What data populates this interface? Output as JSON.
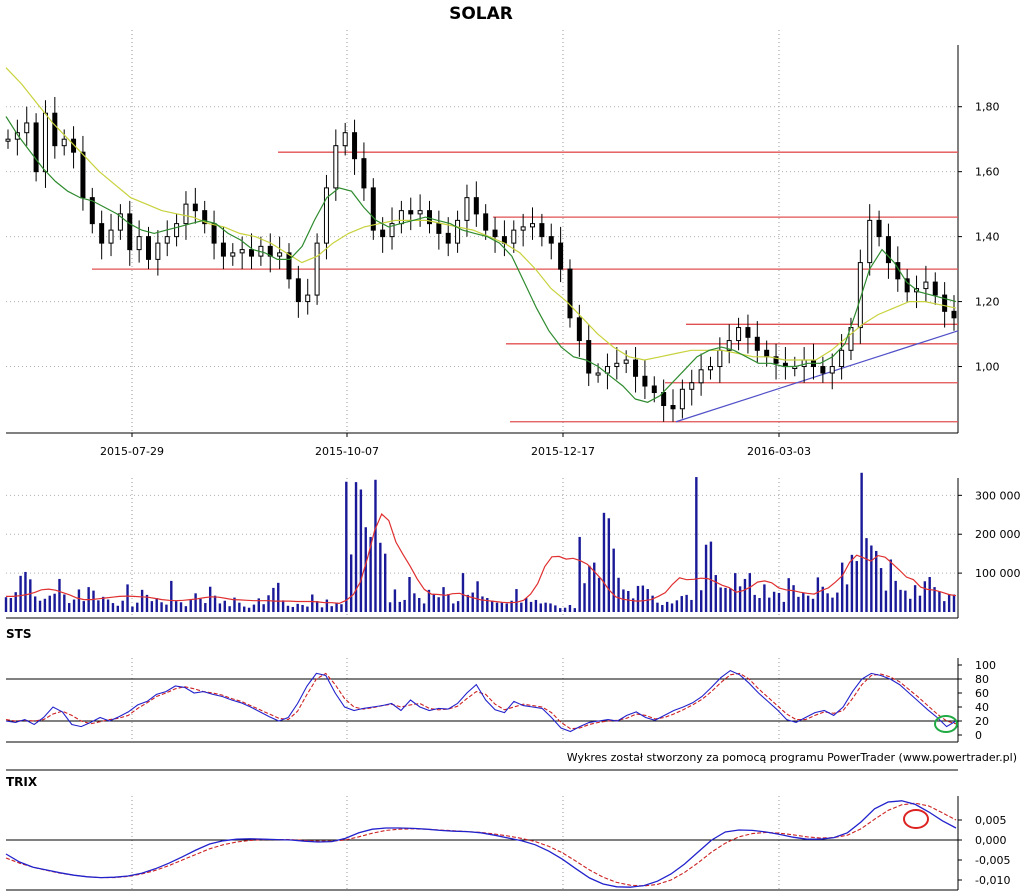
{
  "chart_data": [
    {
      "panel": "price",
      "type": "candlestick",
      "title": "SOLAR",
      "x_tick_labels": [
        "2015-07-29",
        "2015-10-07",
        "2015-12-17",
        "2016-03-03"
      ],
      "y_tick_labels": [
        "1,80",
        "1,60",
        "1,40",
        "1,20",
        "1,00"
      ],
      "ylim": [
        0.82,
        1.99
      ],
      "grid": "dotted",
      "series": [
        {
          "name": "close",
          "color": "#000000",
          "values": [
            1.7,
            1.72,
            1.75,
            1.6,
            1.78,
            1.68,
            1.7,
            1.66,
            1.52,
            1.44,
            1.38,
            1.42,
            1.47,
            1.36,
            1.4,
            1.33,
            1.38,
            1.4,
            1.44,
            1.5,
            1.48,
            1.44,
            1.38,
            1.34,
            1.35,
            1.36,
            1.34,
            1.37,
            1.34,
            1.35,
            1.27,
            1.2,
            1.22,
            1.38,
            1.55,
            1.68,
            1.72,
            1.64,
            1.55,
            1.42,
            1.4,
            1.44,
            1.48,
            1.47,
            1.48,
            1.44,
            1.41,
            1.38,
            1.45,
            1.52,
            1.47,
            1.42,
            1.4,
            1.38,
            1.42,
            1.43,
            1.44,
            1.4,
            1.38,
            1.3,
            1.15,
            1.08,
            0.98,
            0.98,
            1.0,
            1.01,
            1.02,
            0.97,
            0.94,
            0.92,
            0.88,
            0.87,
            0.93,
            0.95,
            0.99,
            1.0,
            1.05,
            1.08,
            1.12,
            1.09,
            1.05,
            1.03,
            1.01,
            1.0,
            1.0,
            1.02,
            1.0,
            0.98,
            1.0,
            1.05,
            1.12,
            1.32,
            1.45,
            1.4,
            1.32,
            1.27,
            1.23,
            1.24,
            1.26,
            1.22,
            1.17,
            1.15
          ]
        },
        {
          "name": "short moving average",
          "color": "#2e8b2e",
          "values": [
            1.77,
            1.71,
            1.66,
            1.61,
            1.57,
            1.54,
            1.52,
            1.51,
            1.49,
            1.47,
            1.44,
            1.42,
            1.41,
            1.42,
            1.43,
            1.44,
            1.45,
            1.44,
            1.41,
            1.39,
            1.36,
            1.35,
            1.33,
            1.33,
            1.37,
            1.45,
            1.52,
            1.55,
            1.54,
            1.49,
            1.45,
            1.43,
            1.44,
            1.45,
            1.46,
            1.45,
            1.44,
            1.42,
            1.41,
            1.4,
            1.38,
            1.34,
            1.26,
            1.18,
            1.11,
            1.06,
            1.03,
            1.02,
            1.0,
            0.97,
            0.94,
            0.9,
            0.89,
            0.91,
            0.95,
            0.99,
            1.03,
            1.05,
            1.06,
            1.05,
            1.03,
            1.01,
            1.01,
            1.0,
            1.0,
            1.01,
            1.01,
            1.03,
            1.07,
            1.18,
            1.3,
            1.36,
            1.32,
            1.26,
            1.23,
            1.22,
            1.21,
            1.2
          ]
        },
        {
          "name": "long moving average",
          "color": "#c8d23c",
          "values": [
            1.92,
            1.87,
            1.81,
            1.75,
            1.7,
            1.65,
            1.6,
            1.56,
            1.52,
            1.5,
            1.48,
            1.47,
            1.46,
            1.44,
            1.43,
            1.41,
            1.4,
            1.38,
            1.35,
            1.32,
            1.34,
            1.38,
            1.41,
            1.43,
            1.44,
            1.45,
            1.45,
            1.45,
            1.44,
            1.43,
            1.42,
            1.4,
            1.38,
            1.35,
            1.3,
            1.24,
            1.2,
            1.15,
            1.1,
            1.06,
            1.03,
            1.02,
            1.03,
            1.04,
            1.05,
            1.05,
            1.05,
            1.04,
            1.03,
            1.03,
            1.02,
            1.02,
            1.02,
            1.05,
            1.09,
            1.13,
            1.16,
            1.18,
            1.2,
            1.2,
            1.19,
            1.18
          ]
        }
      ],
      "horizontal_levels": [
        1.66,
        1.46,
        1.3,
        1.13,
        1.07,
        0.95,
        0.83
      ],
      "trendline": {
        "from": [
          0.83
        ],
        "to": [
          1.11
        ],
        "color": "#5050c8"
      },
      "colors": {
        "candle": "#000000",
        "level": "#e05050",
        "grid": "#888888"
      }
    },
    {
      "panel": "volume",
      "type": "bar",
      "y_tick_labels": [
        "300 000",
        "200 000",
        "100 000"
      ],
      "ylim": [
        0,
        360000
      ],
      "series": [
        {
          "name": "volume",
          "color": "#1a1a99",
          "values": [
            38000,
            36000,
            51000,
            93000,
            103000,
            84000,
            40000,
            29000,
            34000,
            42000,
            47000,
            85000,
            45000,
            23000,
            32000,
            58000,
            28000,
            64000,
            55000,
            30000,
            39000,
            32000,
            23000,
            16000,
            29000,
            71000,
            14000,
            24000,
            57000,
            44000,
            28000,
            36000,
            25000,
            19000,
            80000,
            28000,
            25000,
            15000,
            33000,
            48000,
            34000,
            23000,
            65000,
            42000,
            22000,
            29000,
            15000,
            37000,
            24000,
            14000,
            11000,
            19000,
            35000,
            20000,
            43000,
            62000,
            75000,
            30000,
            16000,
            13000,
            21000,
            18000,
            14000,
            45000,
            28000,
            12000,
            32000,
            15000,
            24000,
            20000,
            335000,
            148000,
            334000,
            315000,
            218000,
            193000,
            340000,
            178000,
            150000,
            25000,
            58000,
            26000,
            31000,
            90000,
            48000,
            36000,
            22000,
            57000,
            46000,
            38000,
            64000,
            46000,
            22000,
            28000,
            100000,
            44000,
            50000,
            79000,
            40000,
            36000,
            29000,
            24000,
            24000,
            22000,
            29000,
            59000,
            24000,
            36000,
            26000,
            31000,
            22000,
            24000,
            22000,
            17000,
            10000,
            11000,
            18000,
            10000,
            193000,
            74000,
            119000,
            127000,
            88000,
            255000,
            241000,
            163000,
            88000,
            58000,
            54000,
            35000,
            67000,
            68000,
            59000,
            42000,
            24000,
            18000,
            26000,
            22000,
            30000,
            41000,
            44000,
            31000,
            347000,
            56000,
            173000,
            181000,
            95000,
            63000,
            62000,
            61000,
            100000,
            66000,
            85000,
            100000,
            44000,
            36000,
            71000,
            37000,
            52000,
            49000,
            26000,
            87000,
            69000,
            39000,
            49000,
            42000,
            34000,
            89000,
            65000,
            48000,
            37000,
            50000,
            127000,
            71000,
            147000,
            131000,
            358000,
            190000,
            171000,
            157000,
            113000,
            55000,
            135000,
            80000,
            57000,
            55000,
            34000,
            69000,
            42000,
            79000,
            90000,
            64000,
            53000,
            28000,
            44000,
            45000
          ]
        },
        {
          "name": "volume average",
          "color": "#e03030",
          "values": [
            40000,
            40000,
            42000,
            45000,
            50000,
            57000,
            59000,
            56000,
            50000,
            44000,
            36000,
            32000,
            32000,
            34000,
            36000,
            38000,
            40000,
            41000,
            40000,
            39000,
            38000,
            35000,
            32000,
            30000,
            29000,
            30000,
            32000,
            34000,
            37000,
            39000,
            38000,
            35000,
            32000,
            31000,
            30000,
            29000,
            29000,
            29000,
            28000,
            28000,
            28000,
            27000,
            27000,
            27000,
            26000,
            24000,
            24000,
            22000,
            30000,
            45000,
            78000,
            140000,
            210000,
            252000,
            235000,
            180000,
            148000,
            118000,
            85000,
            58000,
            46000,
            45000,
            43000,
            47000,
            48000,
            41000,
            36000,
            31000,
            29000,
            27000,
            25000,
            24000,
            25000,
            30000,
            46000,
            73000,
            117000,
            142000,
            143000,
            136000,
            138000,
            132000,
            123000,
            104000,
            84000,
            58000,
            39000,
            33000,
            30000,
            28000,
            29000,
            32000,
            40000,
            50000,
            71000,
            88000,
            83000,
            84000,
            87000,
            86000,
            78000,
            69000,
            63000,
            51000,
            55000,
            64000,
            77000,
            80000,
            75000,
            62000,
            57000,
            55000,
            51000,
            48000,
            46000,
            55000,
            62000,
            77000,
            94000,
            128000,
            146000,
            139000,
            131000,
            145000,
            141000,
            125000,
            108000,
            90000,
            83000,
            64000,
            58000,
            56000,
            51000,
            45000,
            42000
          ]
        }
      ]
    },
    {
      "panel": "STS",
      "type": "line",
      "label": "STS",
      "y_tick_labels": [
        "100",
        "80",
        "60",
        "40",
        "20",
        "0"
      ],
      "ylim": [
        0,
        100
      ],
      "reference_lines": [
        80,
        20
      ],
      "series": [
        {
          "name": "%K",
          "color": "#2222cc",
          "values": [
            20,
            18,
            22,
            15,
            25,
            40,
            33,
            15,
            12,
            18,
            25,
            20,
            26,
            33,
            43,
            48,
            58,
            62,
            70,
            68,
            60,
            62,
            58,
            55,
            50,
            46,
            40,
            33,
            26,
            20,
            25,
            45,
            70,
            88,
            85,
            60,
            40,
            35,
            38,
            40,
            42,
            45,
            35,
            50,
            40,
            35,
            38,
            37,
            45,
            60,
            72,
            50,
            36,
            32,
            48,
            42,
            40,
            38,
            25,
            10,
            5,
            12,
            18,
            20,
            22,
            20,
            28,
            33,
            25,
            21,
            28,
            35,
            40,
            46,
            55,
            68,
            82,
            92,
            86,
            74,
            60,
            48,
            36,
            22,
            18,
            25,
            32,
            35,
            28,
            40,
            62,
            80,
            88,
            85,
            80,
            72,
            60,
            48,
            36,
            25,
            12,
            20
          ]
        },
        {
          "name": "%D",
          "color": "#cc2222",
          "values": [
            22,
            20,
            21,
            20,
            22,
            30,
            34,
            28,
            20,
            16,
            19,
            22,
            24,
            28,
            38,
            46,
            55,
            60,
            66,
            69,
            66,
            62,
            60,
            57,
            52,
            48,
            42,
            36,
            30,
            24,
            22,
            34,
            58,
            80,
            88,
            72,
            52,
            40,
            37,
            39,
            42,
            44,
            40,
            43,
            45,
            38,
            36,
            37,
            41,
            52,
            62,
            58,
            44,
            36,
            40,
            44,
            42,
            40,
            32,
            18,
            9,
            10,
            15,
            18,
            20,
            21,
            24,
            30,
            28,
            23,
            25,
            30,
            36,
            43,
            51,
            62,
            75,
            86,
            88,
            80,
            66,
            54,
            42,
            30,
            22,
            22,
            28,
            33,
            31,
            35,
            52,
            72,
            85,
            87,
            83,
            76,
            65,
            54,
            42,
            30,
            20,
            16
          ]
        }
      ],
      "marker": {
        "shape": "ellipse",
        "color": "#22aa44"
      }
    },
    {
      "panel": "TRIX",
      "type": "line",
      "label": "TRIX",
      "y_tick_labels": [
        "0,005",
        "0,000",
        "-0,005",
        "-0,010"
      ],
      "ylim": [
        -0.0125,
        0.011
      ],
      "reference_lines": [
        0.0
      ],
      "series": [
        {
          "name": "TRIX",
          "color": "#2222cc",
          "values": [
            -0.0035,
            -0.0055,
            -0.0068,
            -0.0075,
            -0.0082,
            -0.0088,
            -0.0092,
            -0.0094,
            -0.0093,
            -0.009,
            -0.0083,
            -0.0072,
            -0.0058,
            -0.0042,
            -0.0025,
            -0.001,
            -0.0002,
            0.0002,
            0.0003,
            0.0002,
            0.0001,
            0.0,
            -0.0003,
            -0.0005,
            -0.0004,
            0.0004,
            0.0018,
            0.0027,
            0.003,
            0.003,
            0.0029,
            0.0027,
            0.0024,
            0.0022,
            0.0021,
            0.0018,
            0.0012,
            0.0005,
            -0.0002,
            -0.0012,
            -0.0028,
            -0.0048,
            -0.0072,
            -0.0095,
            -0.011,
            -0.0117,
            -0.0118,
            -0.0114,
            -0.0103,
            -0.0085,
            -0.006,
            -0.003,
            0.0,
            0.002,
            0.0025,
            0.0024,
            0.002,
            0.0014,
            0.0007,
            0.0002,
            0.0002,
            0.0006,
            0.0018,
            0.0045,
            0.0078,
            0.0095,
            0.0098,
            0.0089,
            0.007,
            0.0048,
            0.003
          ]
        },
        {
          "name": "signal",
          "color": "#cc2222",
          "values": [
            -0.0045,
            -0.0058,
            -0.0068,
            -0.0076,
            -0.0083,
            -0.0088,
            -0.0092,
            -0.0094,
            -0.0094,
            -0.0091,
            -0.0085,
            -0.0076,
            -0.0064,
            -0.005,
            -0.0036,
            -0.0022,
            -0.0012,
            -0.0005,
            -0.0001,
            0.0001,
            0.0001,
            0.0001,
            -0.0001,
            -0.0003,
            -0.0003,
            0.0,
            0.0008,
            0.0017,
            0.0024,
            0.0027,
            0.0028,
            0.0027,
            0.0025,
            0.0023,
            0.0021,
            0.0019,
            0.0015,
            0.001,
            0.0004,
            -0.0004,
            -0.0016,
            -0.0032,
            -0.0053,
            -0.0075,
            -0.0093,
            -0.0106,
            -0.0113,
            -0.0115,
            -0.0111,
            -0.01,
            -0.0081,
            -0.0057,
            -0.003,
            -0.0008,
            0.0008,
            0.0016,
            0.0019,
            0.0017,
            0.0013,
            0.0008,
            0.0005,
            0.0006,
            0.0012,
            0.0028,
            0.0052,
            0.0074,
            0.0088,
            0.0092,
            0.0085,
            0.0068,
            0.005
          ]
        }
      ],
      "marker": {
        "shape": "ellipse",
        "color": "#dd2222"
      }
    }
  ],
  "credit": "Wykres został stworzony za pomocą programu PowerTrader (www.powertrader.pl)"
}
